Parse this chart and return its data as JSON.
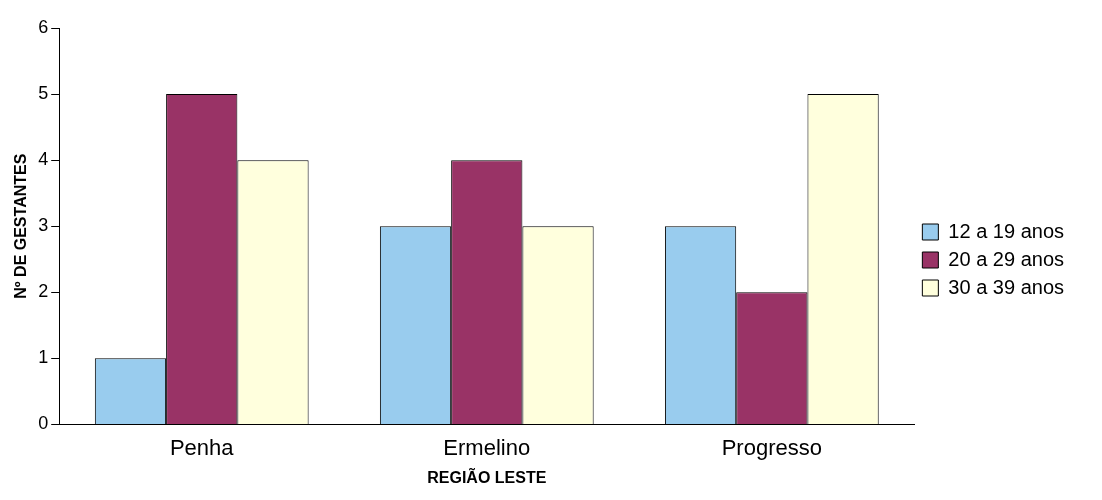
{
  "chart_data": {
    "type": "bar",
    "xlabel": "REGIÃO LESTE",
    "ylabel": "Nº DE GESTANTES",
    "categories": [
      "Penha",
      "Ermelino",
      "Progresso"
    ],
    "series": [
      {
        "name": "12 a 19 anos",
        "color": "#99ccee",
        "values": [
          1,
          3,
          3
        ]
      },
      {
        "name": "20 a 29 anos",
        "color": "#993366",
        "values": [
          5,
          4,
          2
        ]
      },
      {
        "name": "30 a 39 anos",
        "color": "#ffffdd",
        "values": [
          4,
          3,
          5
        ]
      }
    ],
    "ylim": [
      0,
      6
    ],
    "yticks": [
      0,
      1,
      2,
      3,
      4,
      5,
      6
    ],
    "grid": false,
    "legend": "right"
  }
}
